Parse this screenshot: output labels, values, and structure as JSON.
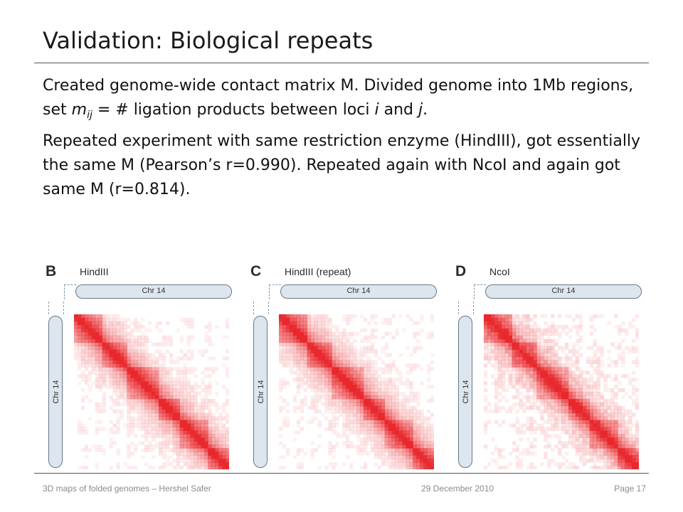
{
  "slide": {
    "title": "Validation: Biological repeats",
    "para1": {
      "t1": "Created genome-wide contact matrix M. Divided genome into 1Mb regions, set ",
      "m": "m",
      "sub": "ij",
      "t2": " = # ligation products between loci ",
      "i": "i",
      "t3": " and ",
      "j": "j",
      "t4": "."
    },
    "para2": "Repeated experiment with same restriction enzyme (HindIII), got essentially the same M (Pearson’s r=0.990). Repeated again with NcoI and again got same M (r=0.814)."
  },
  "figure": {
    "panels": [
      {
        "letter": "B",
        "name": "HindIII",
        "chr_h": "Chr 14",
        "chr_v": "Chr 14"
      },
      {
        "letter": "C",
        "name": "HindIII (repeat)",
        "chr_h": "Chr 14",
        "chr_v": "Chr 14"
      },
      {
        "letter": "D",
        "name": "NcoI",
        "chr_h": "Chr 14",
        "chr_v": "Chr 14"
      }
    ],
    "heatmap_color": "#e8282c"
  },
  "footer": {
    "left": "3D maps of folded genomes – Hershel Safer",
    "center": "29 December 2010",
    "right": "Page 17"
  }
}
